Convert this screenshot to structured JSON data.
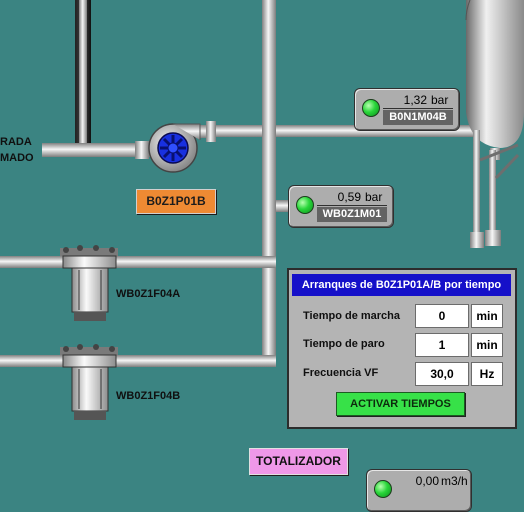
{
  "left_labels": {
    "line1": "RADA",
    "line2": "MADO"
  },
  "pump": {
    "tag": "B0Z1P01B"
  },
  "gauges": [
    {
      "value": "1,32",
      "unit": "bar",
      "tag": "B0N1M04B"
    },
    {
      "value": "0,59",
      "unit": "bar",
      "tag": "WB0Z1M01"
    },
    {
      "value": "0,00",
      "unit": "m3/h"
    }
  ],
  "filters": [
    {
      "tag": "WB0Z1F04A"
    },
    {
      "tag": "WB0Z1F04B"
    }
  ],
  "panel": {
    "title": "Arranques de B0Z1P01A/B por tiempo",
    "rows": [
      {
        "label": "Tiempo de marcha",
        "value": "0",
        "unit": "min"
      },
      {
        "label": "Tiempo de paro",
        "value": "1",
        "unit": "min"
      },
      {
        "label": "Frecuencia VF",
        "value": "30,0",
        "unit": "Hz"
      }
    ],
    "button": "ACTIVAR TIEMPOS"
  },
  "totalizer_button": "TOTALIZADOR",
  "colors": {
    "background": "#3b8482",
    "panel_title": "#1510c9",
    "pump_impeller": "#1830e0",
    "led": "#29d63a"
  }
}
